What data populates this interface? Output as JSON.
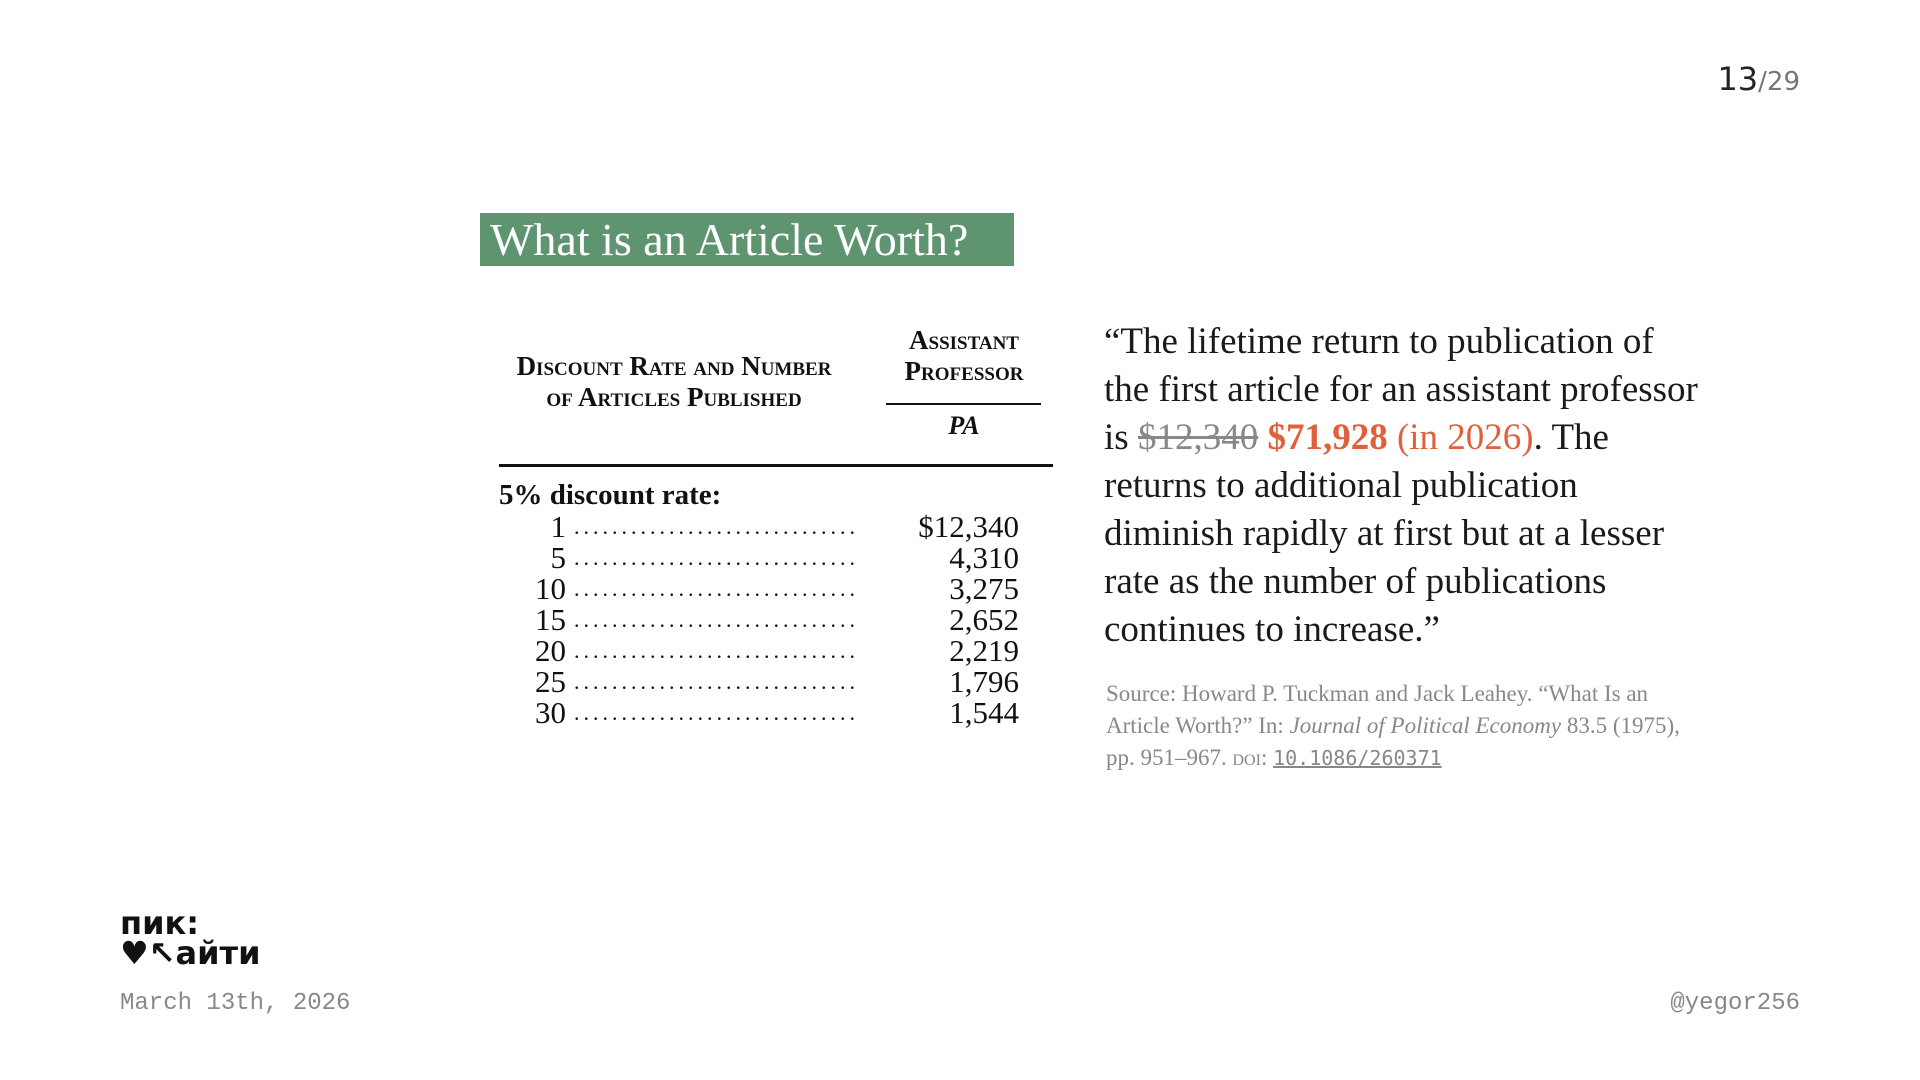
{
  "slide": {
    "current": "13",
    "total": "/29"
  },
  "title": "What is an Article Worth?",
  "table": {
    "header_left": "Discount Rate and Number of Articles Published",
    "header_right": "Assistant Professor",
    "header_symbol": "PA",
    "group_label": "5% discount rate:",
    "rows": [
      {
        "n": "1",
        "value": "$12,340"
      },
      {
        "n": "5",
        "value": "4,310"
      },
      {
        "n": "10",
        "value": "3,275"
      },
      {
        "n": "15",
        "value": "2,652"
      },
      {
        "n": "20",
        "value": "2,219"
      },
      {
        "n": "25",
        "value": "1,796"
      },
      {
        "n": "30",
        "value": "1,544"
      }
    ]
  },
  "quote": {
    "part1": "“The lifetime return to publication of the first article for an assistant professor is ",
    "old_value": "$12,340",
    "new_value": "$71,928",
    "new_note": " (in 2026)",
    "part2": ". The returns to additional publication diminish rapidly at first but at a lesser rate as the number of publications continues to increase.”"
  },
  "source": {
    "prefix": "Source: Howard P. Tuckman and Jack Leahey. “What Is an Article Worth?” In: ",
    "journal": "Journal of Political Economy",
    "details": " 83.5 (1975), pp. 951–967. ",
    "doi_label": "doi:",
    "doi": "10.1086/260371"
  },
  "logo": {
    "line1": "пик:",
    "line2": "♥↖айти"
  },
  "footer": {
    "date": "March 13th, 2026",
    "handle": "@yegor256"
  },
  "colors": {
    "title_bg": "#5e9470",
    "highlight": "#e0603e"
  }
}
